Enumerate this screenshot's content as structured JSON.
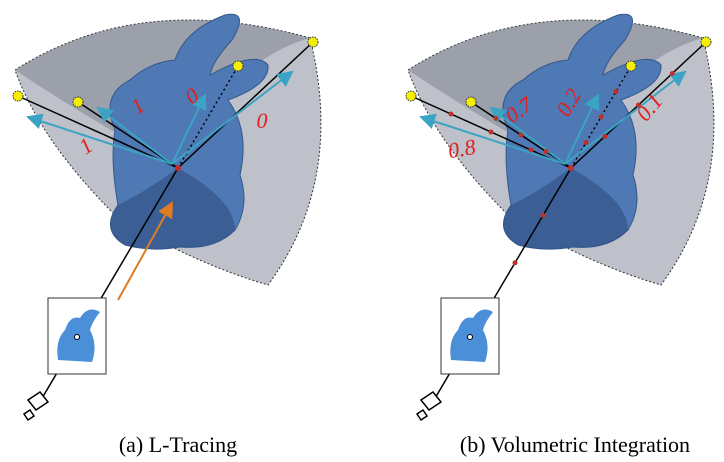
{
  "panels": [
    {
      "caption": "(a) L-Tracing",
      "labels": [
        1,
        1,
        0,
        0
      ]
    },
    {
      "caption": "(b) Volumetric Integration",
      "labels": [
        0.8,
        0.7,
        0.2,
        0.1
      ]
    }
  ]
}
